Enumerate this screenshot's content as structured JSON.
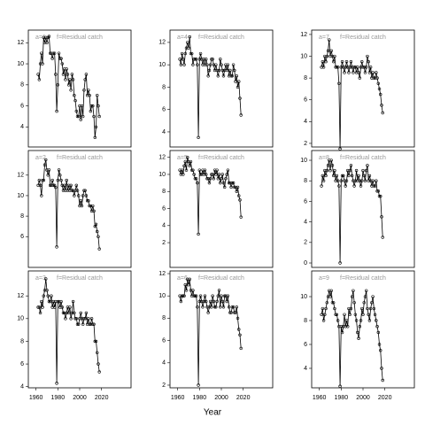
{
  "xlabel": "Year",
  "chart_data": [
    {
      "type": "line",
      "title": "a=1",
      "subtitle": "f=Residual catch",
      "color": "#000000",
      "markers": true,
      "x": [
        1962,
        1963,
        1964,
        1965,
        1966,
        1967,
        1968,
        1969,
        1970,
        1971,
        1972,
        1973,
        1974,
        1975,
        1976,
        1977,
        1978,
        1979,
        1980,
        1981,
        1982,
        1983,
        1984,
        1985,
        1986,
        1987,
        1988,
        1989,
        1990,
        1991,
        1992,
        1993,
        1994,
        1995,
        1996,
        1997,
        1998,
        1999,
        2000,
        2001,
        2002,
        2003,
        2004,
        2005,
        2006,
        2007,
        2008,
        2009,
        2010,
        2011,
        2012,
        2013,
        2014,
        2015,
        2016,
        2017,
        2018
      ],
      "values": [
        9,
        8.5,
        10,
        11,
        10,
        12.5,
        12,
        12.5,
        12,
        12.5,
        12.6,
        11,
        11,
        10.5,
        11,
        11,
        9,
        5.5,
        8,
        11,
        10.5,
        10.5,
        10,
        9,
        9.5,
        8.5,
        9.5,
        9,
        8,
        8.5,
        7.5,
        9,
        8.5,
        7,
        6.5,
        5.5,
        5,
        5,
        6,
        4.7,
        6,
        5,
        7.5,
        8.5,
        9,
        7,
        7.5,
        7,
        5.5,
        6,
        6,
        5,
        3,
        4,
        7,
        6,
        5
      ],
      "xlim": [
        1953,
        2047
      ],
      "ylim": [
        2.1,
        13.2
      ],
      "yticks": [
        4,
        6,
        8,
        10,
        12
      ]
    },
    {
      "type": "line",
      "title": "a=2",
      "subtitle": "f=Residual catch",
      "color": "#000000",
      "markers": true,
      "x": [
        1962,
        1963,
        1964,
        1965,
        1966,
        1967,
        1968,
        1969,
        1970,
        1971,
        1972,
        1973,
        1974,
        1975,
        1976,
        1977,
        1978,
        1979,
        1980,
        1981,
        1982,
        1983,
        1984,
        1985,
        1986,
        1987,
        1988,
        1989,
        1990,
        1991,
        1992,
        1993,
        1994,
        1995,
        1996,
        1997,
        1998,
        1999,
        2000,
        2001,
        2002,
        2003,
        2004,
        2005,
        2006,
        2007,
        2008,
        2009,
        2010,
        2011,
        2012,
        2013,
        2014,
        2015,
        2016,
        2017,
        2018
      ],
      "values": [
        11,
        11.5,
        11,
        10,
        11.5,
        11.5,
        13,
        13.5,
        12.5,
        12,
        12.5,
        11,
        11,
        11.5,
        11,
        11,
        10.8,
        5,
        11.5,
        12.5,
        12,
        11.5,
        11,
        10.5,
        11,
        10.5,
        11.5,
        10.5,
        11,
        10.5,
        11,
        10.5,
        10.5,
        10,
        10.5,
        11,
        10.5,
        10,
        9,
        9.5,
        9,
        10,
        10.5,
        10.5,
        10,
        9.5,
        9.5,
        9,
        9,
        8.5,
        9,
        8.5,
        7,
        7.2,
        6.5,
        6,
        4.8
      ],
      "xlim": [
        1953,
        2047
      ],
      "ylim": [
        3,
        14.4
      ],
      "yticks": [
        6,
        8,
        10,
        12
      ]
    },
    {
      "type": "line",
      "title": "a=3",
      "subtitle": "f=Residual catch",
      "color": "#000000",
      "markers": true,
      "x": [
        1962,
        1963,
        1964,
        1965,
        1966,
        1967,
        1968,
        1969,
        1970,
        1971,
        1972,
        1973,
        1974,
        1975,
        1976,
        1977,
        1978,
        1979,
        1980,
        1981,
        1982,
        1983,
        1984,
        1985,
        1986,
        1987,
        1988,
        1989,
        1990,
        1991,
        1992,
        1993,
        1994,
        1995,
        1996,
        1997,
        1998,
        1999,
        2000,
        2001,
        2002,
        2003,
        2004,
        2005,
        2006,
        2007,
        2008,
        2009,
        2010,
        2011,
        2012,
        2013,
        2014,
        2015,
        2016,
        2017,
        2018
      ],
      "values": [
        11,
        11,
        10.5,
        11.5,
        11,
        12,
        12.5,
        13.5,
        12.5,
        12,
        11.5,
        11.5,
        12,
        11,
        11.5,
        11,
        11.5,
        4.3,
        11.5,
        11.5,
        11,
        11.5,
        11,
        10.5,
        10.5,
        10,
        10.5,
        11,
        10.5,
        11,
        10,
        10.5,
        11.5,
        10.5,
        10,
        10,
        9.5,
        9.5,
        10,
        10.5,
        10,
        9.5,
        10,
        10,
        10.5,
        9.5,
        10,
        9.5,
        9.5,
        10,
        9.5,
        9.5,
        8,
        8,
        7,
        6,
        5.3
      ],
      "xlim": [
        1953,
        2047
      ],
      "ylim": [
        3.9,
        14.2
      ],
      "yticks": [
        4,
        6,
        8,
        10,
        12
      ],
      "xticks": [
        1960,
        1980,
        2000,
        2020
      ]
    },
    {
      "type": "line",
      "title": "a=4",
      "subtitle": "f=Residual catch",
      "color": "#000000",
      "markers": true,
      "x": [
        1962,
        1963,
        1964,
        1965,
        1966,
        1967,
        1968,
        1969,
        1970,
        1971,
        1972,
        1973,
        1974,
        1975,
        1976,
        1977,
        1978,
        1979,
        1980,
        1981,
        1982,
        1983,
        1984,
        1985,
        1986,
        1987,
        1988,
        1989,
        1990,
        1991,
        1992,
        1993,
        1994,
        1995,
        1996,
        1997,
        1998,
        1999,
        2000,
        2001,
        2002,
        2003,
        2004,
        2005,
        2006,
        2007,
        2008,
        2009,
        2010,
        2011,
        2012,
        2013,
        2014,
        2015,
        2016,
        2017,
        2018
      ],
      "values": [
        10.5,
        10,
        11,
        10.5,
        10,
        11,
        11.5,
        12,
        11.5,
        12.5,
        11,
        11,
        10,
        10.5,
        10.5,
        10.5,
        10,
        3.5,
        10.5,
        11,
        10.5,
        10,
        10.5,
        10,
        10.5,
        10,
        9,
        9.5,
        10,
        10.5,
        10.5,
        10,
        9.5,
        10,
        9.5,
        9,
        9.5,
        10.5,
        10,
        9.5,
        9,
        9.5,
        10,
        9.5,
        10,
        9,
        9.5,
        9,
        9,
        10,
        9.5,
        8.5,
        9,
        8,
        8.5,
        7,
        5.5
      ],
      "xlim": [
        1953,
        2047
      ],
      "ylim": [
        2.65,
        13.1
      ],
      "yticks": [
        4,
        6,
        8,
        10,
        12
      ]
    },
    {
      "type": "line",
      "title": "a=5",
      "subtitle": "f=Residual catch",
      "color": "#000000",
      "markers": true,
      "x": [
        1962,
        1963,
        1964,
        1965,
        1966,
        1967,
        1968,
        1969,
        1970,
        1971,
        1972,
        1973,
        1974,
        1975,
        1976,
        1977,
        1978,
        1979,
        1980,
        1981,
        1982,
        1983,
        1984,
        1985,
        1986,
        1987,
        1988,
        1989,
        1990,
        1991,
        1992,
        1993,
        1994,
        1995,
        1996,
        1997,
        1998,
        1999,
        2000,
        2001,
        2002,
        2003,
        2004,
        2005,
        2006,
        2007,
        2008,
        2009,
        2010,
        2011,
        2012,
        2013,
        2014,
        2015,
        2016,
        2017,
        2018
      ],
      "values": [
        10.5,
        10,
        10.5,
        10,
        11,
        11.5,
        10.5,
        12,
        11.5,
        11,
        11.5,
        10.5,
        10.5,
        10,
        9.5,
        9.5,
        9,
        3,
        10.5,
        10,
        10,
        10.5,
        10,
        10.5,
        10,
        9.5,
        9.5,
        9,
        9.5,
        10,
        10,
        9.5,
        10.5,
        10,
        10.5,
        9.5,
        10,
        9,
        9.5,
        10,
        9,
        8.5,
        9.5,
        10,
        10.5,
        9,
        9,
        8.5,
        9,
        9,
        8.5,
        8.5,
        8,
        8.5,
        7.5,
        7,
        5
      ],
      "xlim": [
        1953,
        2047
      ],
      "ylim": [
        -0.9,
        12.8
      ],
      "yticks": [
        2,
        4,
        6,
        8,
        10,
        12
      ]
    },
    {
      "type": "line",
      "title": "a=6",
      "subtitle": "f=Residual catch",
      "color": "#000000",
      "markers": true,
      "x": [
        1962,
        1963,
        1964,
        1965,
        1966,
        1967,
        1968,
        1969,
        1970,
        1971,
        1972,
        1973,
        1974,
        1975,
        1976,
        1977,
        1978,
        1979,
        1980,
        1981,
        1982,
        1983,
        1984,
        1985,
        1986,
        1987,
        1988,
        1989,
        1990,
        1991,
        1992,
        1993,
        1994,
        1995,
        1996,
        1997,
        1998,
        1999,
        2000,
        2001,
        2002,
        2003,
        2004,
        2005,
        2006,
        2007,
        2008,
        2009,
        2010,
        2011,
        2012,
        2013,
        2014,
        2015,
        2016,
        2017,
        2018
      ],
      "values": [
        10,
        9.5,
        10,
        10,
        10,
        11,
        10.5,
        11.5,
        11,
        11.5,
        10.5,
        10,
        10.5,
        10,
        10,
        10,
        9,
        2,
        9.5,
        10,
        9.5,
        9,
        9.5,
        10,
        9.5,
        9,
        8.5,
        9,
        9.5,
        9,
        10,
        9.5,
        9,
        9,
        9.5,
        10,
        10.5,
        9,
        10,
        9.5,
        9,
        10,
        10,
        9.5,
        10,
        9,
        8.5,
        8.5,
        9,
        9,
        8.5,
        8.5,
        9,
        8,
        7,
        6.5,
        5.3
      ],
      "xlim": [
        1953,
        2047
      ],
      "ylim": [
        1.76,
        12.24
      ],
      "yticks": [
        2,
        4,
        6,
        8,
        10,
        12
      ],
      "xticks": [
        1960,
        1980,
        2000,
        2020
      ]
    },
    {
      "type": "line",
      "title": "a=7",
      "subtitle": "f=Residual catch",
      "color": "#000000",
      "markers": true,
      "x": [
        1962,
        1963,
        1964,
        1965,
        1966,
        1967,
        1968,
        1969,
        1970,
        1971,
        1972,
        1973,
        1974,
        1975,
        1976,
        1977,
        1978,
        1979,
        1980,
        1981,
        1982,
        1983,
        1984,
        1985,
        1986,
        1987,
        1988,
        1989,
        1990,
        1991,
        1992,
        1993,
        1994,
        1995,
        1996,
        1997,
        1998,
        1999,
        2000,
        2001,
        2002,
        2003,
        2004,
        2005,
        2006,
        2007,
        2008,
        2009,
        2010,
        2011,
        2012,
        2013,
        2014,
        2015,
        2016,
        2017,
        2018
      ],
      "values": [
        9,
        9.5,
        9,
        10,
        9.5,
        10,
        10.5,
        11.5,
        10,
        10.5,
        10,
        9.5,
        10,
        9,
        9,
        9,
        7.5,
        1.5,
        9,
        9.5,
        9,
        8.5,
        9,
        9.5,
        9,
        8.5,
        9,
        9.5,
        9,
        8.5,
        9,
        9,
        8.5,
        9,
        8.5,
        8,
        9,
        9.5,
        9,
        9,
        8.5,
        9,
        10,
        9.5,
        8.5,
        9,
        8,
        8.5,
        8,
        8,
        8.5,
        8,
        7.5,
        7,
        6.5,
        5.5,
        4.8
      ],
      "xlim": [
        1953,
        2047
      ],
      "ylim": [
        1.67,
        12.4
      ],
      "yticks": [
        2,
        4,
        6,
        8,
        10,
        12
      ]
    },
    {
      "type": "line",
      "title": "a=8",
      "subtitle": "f=Residual catch",
      "color": "#000000",
      "markers": true,
      "x": [
        1962,
        1963,
        1964,
        1965,
        1966,
        1967,
        1968,
        1969,
        1970,
        1971,
        1972,
        1973,
        1974,
        1975,
        1976,
        1977,
        1978,
        1979,
        1980,
        1981,
        1982,
        1983,
        1984,
        1985,
        1986,
        1987,
        1988,
        1989,
        1990,
        1991,
        1992,
        1993,
        1994,
        1995,
        1996,
        1997,
        1998,
        1999,
        2000,
        2001,
        2002,
        2003,
        2004,
        2005,
        2006,
        2007,
        2008,
        2009,
        2010,
        2011,
        2012,
        2013,
        2014,
        2015,
        2016,
        2017,
        2018
      ],
      "values": [
        7.5,
        8.5,
        8,
        9,
        8.5,
        9,
        9.5,
        10,
        9,
        10,
        9.5,
        8.5,
        9,
        8,
        8.5,
        8,
        7.5,
        0,
        8,
        8.5,
        8.5,
        8,
        7.5,
        8,
        9,
        8.5,
        9,
        9.5,
        8.5,
        8,
        7.5,
        8,
        9,
        8,
        8.5,
        8,
        7.5,
        8,
        9,
        8.5,
        8,
        9,
        9.5,
        8,
        8.5,
        8,
        7.5,
        8,
        7.5,
        7.5,
        8,
        7,
        7,
        6.5,
        6.5,
        4.5,
        2.5
      ],
      "xlim": [
        1953,
        2047
      ],
      "ylim": [
        -0.43,
        10.95
      ],
      "yticks": [
        0,
        2,
        4,
        6,
        8,
        10
      ]
    },
    {
      "type": "line",
      "title": "a=9",
      "subtitle": "f=Residual catch",
      "color": "#000000",
      "markers": true,
      "x": [
        1962,
        1963,
        1964,
        1965,
        1966,
        1967,
        1968,
        1969,
        1970,
        1971,
        1972,
        1973,
        1974,
        1975,
        1976,
        1977,
        1978,
        1979,
        1980,
        1981,
        1982,
        1983,
        1984,
        1985,
        1986,
        1987,
        1988,
        1989,
        1990,
        1991,
        1992,
        1993,
        1994,
        1995,
        1996,
        1997,
        1998,
        1999,
        2000,
        2001,
        2002,
        2003,
        2004,
        2005,
        2006,
        2007,
        2008,
        2009,
        2010,
        2011,
        2012,
        2013,
        2014,
        2015,
        2016,
        2017,
        2018
      ],
      "values": [
        8.5,
        9,
        8,
        8.5,
        9,
        9.5,
        10,
        10.5,
        10,
        10.5,
        9.5,
        9.5,
        9,
        8.5,
        8.5,
        8,
        7.5,
        2.5,
        7.5,
        7,
        7.5,
        8.5,
        7.5,
        8,
        7.5,
        9,
        8.5,
        9,
        10,
        10.5,
        9.5,
        8.5,
        8,
        7,
        6.5,
        7.5,
        8,
        9,
        8.5,
        9.5,
        10,
        10.5,
        9,
        8.5,
        8,
        9,
        9.5,
        10,
        9,
        8.5,
        8,
        7.5,
        7,
        6,
        5.5,
        4,
        3
      ],
      "xlim": [
        1953,
        2047
      ],
      "ylim": [
        2.37,
        12.15
      ],
      "yticks": [
        4,
        6,
        8,
        10
      ],
      "xticks": [
        1960,
        1980,
        2000,
        2020
      ]
    }
  ]
}
